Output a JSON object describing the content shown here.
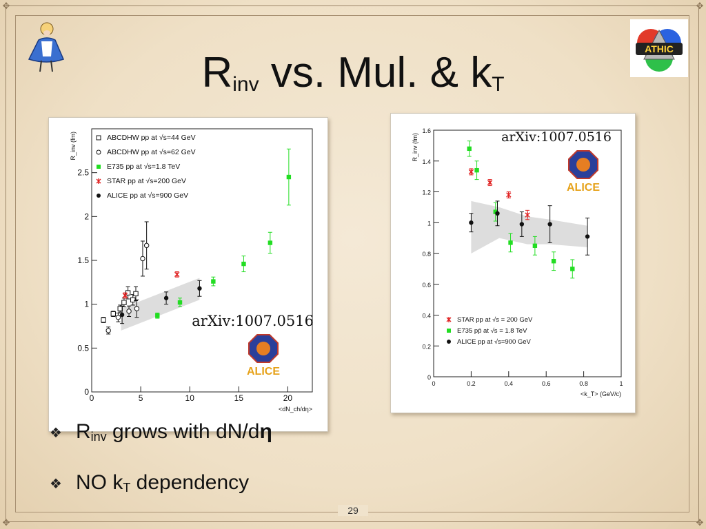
{
  "slide": {
    "title_main": "R",
    "title_sub": "inv",
    "title_rest": " vs. Mul. & k",
    "title_sub2": "T",
    "page_number": "29",
    "logo_right_text": "ATHIC"
  },
  "bullets": [
    {
      "pre": "R",
      "sub": "inv",
      "post": " grows with dN/d",
      "bold": "η"
    },
    {
      "pre": "NO k",
      "sub": "T",
      "post": " dependency",
      "bold": ""
    }
  ],
  "colors": {
    "green": "#22dd22",
    "red": "#e02020",
    "black": "#111111",
    "band": "#d9d9d9"
  },
  "chart_data": [
    {
      "type": "scatter",
      "ylabel": "R_inv (fm)",
      "xlabel": "<dN_ch/dη>",
      "xlim": [
        0,
        22.5
      ],
      "ylim": [
        0,
        3.0
      ],
      "xticks": [
        0,
        5,
        10,
        15,
        20
      ],
      "yticks": [
        0,
        0.5,
        1,
        1.5,
        2,
        2.5
      ],
      "annotation": "arXiv:1007.0516",
      "logo_text": "ALICE",
      "legend_position": "top-left",
      "band": {
        "x": [
          3.0,
          11.0,
          11.0,
          3.0
        ],
        "y": [
          0.95,
          1.3,
          1.05,
          0.7
        ]
      },
      "series": [
        {
          "name": "ABCDHW pp at √s=44 GeV",
          "marker": "open-square",
          "color": "#111111",
          "x": [
            1.2,
            2.2,
            2.9,
            3.3,
            3.7,
            4.2,
            4.5
          ],
          "y": [
            0.82,
            0.89,
            0.95,
            1.02,
            1.13,
            1.05,
            1.12
          ],
          "err": [
            0.03,
            0.03,
            0.04,
            0.05,
            0.07,
            0.06,
            0.08
          ]
        },
        {
          "name": "ABCDHW pp at √s=62 GeV",
          "marker": "open-circle",
          "color": "#111111",
          "x": [
            1.7,
            2.7,
            3.8,
            4.6,
            5.2,
            5.6
          ],
          "y": [
            0.7,
            0.85,
            0.92,
            0.95,
            1.52,
            1.67
          ],
          "err": [
            0.04,
            0.05,
            0.06,
            0.1,
            0.2,
            0.27
          ]
        },
        {
          "name": "E735 pp at √s=1.8 TeV",
          "marker": "filled-square",
          "color": "#22dd22",
          "x": [
            6.7,
            9.0,
            12.4,
            15.5,
            18.2,
            20.1
          ],
          "y": [
            0.87,
            1.02,
            1.26,
            1.46,
            1.7,
            2.45
          ],
          "err": [
            0.03,
            0.05,
            0.05,
            0.09,
            0.12,
            0.32
          ]
        },
        {
          "name": "STAR pp at √s=200 GeV",
          "marker": "star",
          "color": "#e02020",
          "x": [
            3.4,
            8.7
          ],
          "y": [
            1.1,
            1.34
          ],
          "err": [
            0.03,
            0.03
          ]
        },
        {
          "name": "ALICE pp at √s=900 GeV",
          "marker": "filled-circle",
          "color": "#111111",
          "x": [
            3.1,
            7.6,
            11.0
          ],
          "y": [
            0.88,
            1.07,
            1.18
          ],
          "err": [
            0.1,
            0.07,
            0.09
          ]
        }
      ]
    },
    {
      "type": "scatter",
      "ylabel": "R_inv (fm)",
      "xlabel": "<k_T> (GeV/c)",
      "xlim": [
        0,
        1.0
      ],
      "ylim": [
        0,
        1.6
      ],
      "xticks": [
        0,
        0.2,
        0.4,
        0.6,
        0.8,
        1
      ],
      "yticks": [
        0,
        0.2,
        0.4,
        0.6,
        0.8,
        1,
        1.2,
        1.4,
        1.6
      ],
      "annotation": "arXiv:1007.0516",
      "logo_text": "ALICE",
      "legend_position": "bottom-left",
      "band": {
        "x": [
          0.2,
          0.35,
          0.5,
          0.62,
          0.82,
          0.82,
          0.62,
          0.5,
          0.35,
          0.2
        ],
        "y": [
          1.14,
          1.1,
          1.04,
          1.02,
          0.98,
          0.84,
          0.86,
          0.86,
          0.9,
          0.8
        ]
      },
      "series": [
        {
          "name": "STAR pp at √s = 200 GeV",
          "marker": "star",
          "color": "#e02020",
          "x": [
            0.2,
            0.3,
            0.4,
            0.5
          ],
          "y": [
            1.33,
            1.26,
            1.18,
            1.05
          ],
          "err": [
            0.02,
            0.02,
            0.02,
            0.03
          ]
        },
        {
          "name": "E735 pp̄ at √s = 1.8 TeV",
          "marker": "filled-square",
          "color": "#22dd22",
          "x": [
            0.19,
            0.23,
            0.33,
            0.41,
            0.54,
            0.64,
            0.74
          ],
          "y": [
            1.48,
            1.34,
            1.07,
            0.87,
            0.85,
            0.75,
            0.7
          ],
          "err": [
            0.05,
            0.06,
            0.06,
            0.06,
            0.06,
            0.06,
            0.06
          ]
        },
        {
          "name": "ALICE pp at √s=900 GeV",
          "marker": "filled-circle",
          "color": "#111111",
          "x": [
            0.2,
            0.34,
            0.47,
            0.62,
            0.82
          ],
          "y": [
            1.0,
            1.06,
            0.99,
            0.99,
            0.91
          ],
          "err": [
            0.06,
            0.08,
            0.08,
            0.12,
            0.12
          ]
        }
      ]
    }
  ]
}
